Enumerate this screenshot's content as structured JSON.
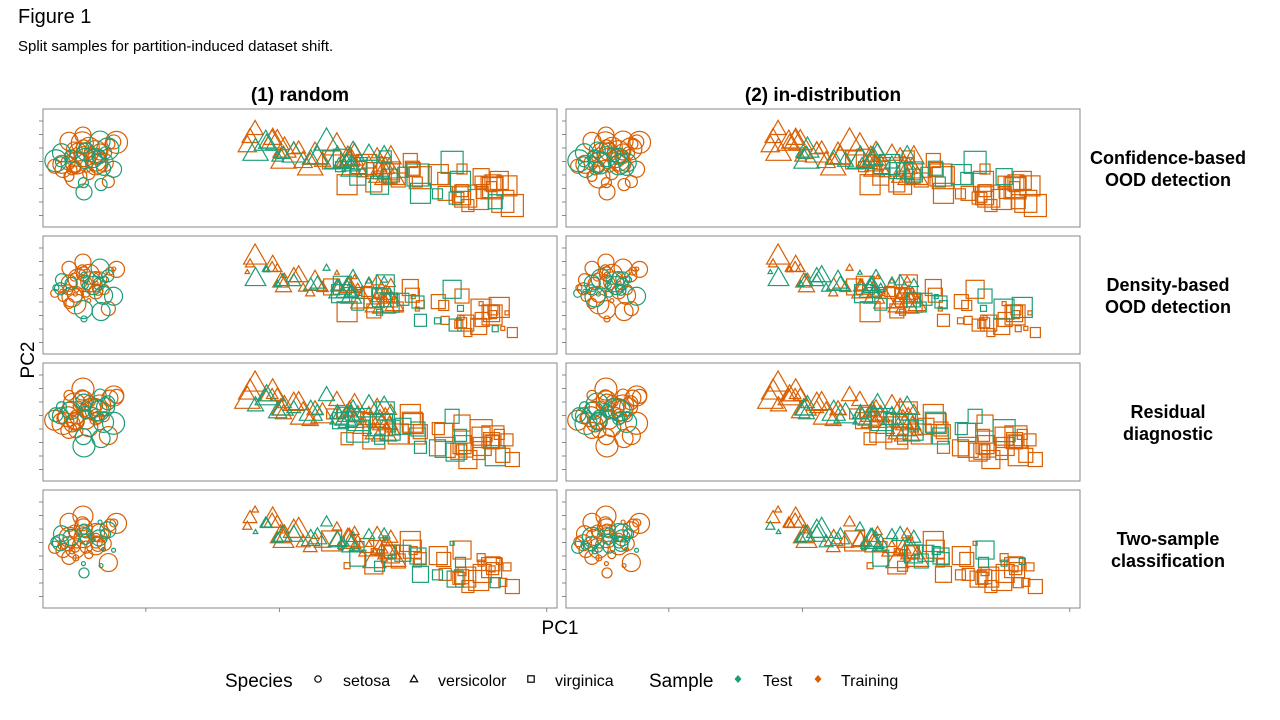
{
  "figure": {
    "label": "Figure 1",
    "caption": "Split samples for partition-induced dataset shift."
  },
  "chart_data": {
    "type": "scatter",
    "columns": [
      "(1) random",
      "(2) in-distribution"
    ],
    "rows": [
      [
        "Confidence-based",
        "OOD detection"
      ],
      [
        "Density-based",
        "OOD detection"
      ],
      [
        "Residual",
        "diagnostic"
      ],
      [
        "Two-sample",
        "classification"
      ]
    ],
    "xlabel": "PC1",
    "ylabel": "PC2",
    "xlim": [
      -3.3,
      4.2
    ],
    "ylim": [
      -1.1,
      1.5
    ],
    "axis_tick_labels": false,
    "grid": false,
    "shape_legend": {
      "title": "Species",
      "entries": [
        "setosa",
        "versicolor",
        "virginica"
      ]
    },
    "color_legend": {
      "title": "Sample",
      "entries": [
        "Test",
        "Training"
      ]
    },
    "colors": {
      "Test": "#1b9e77",
      "Training": "#d95f02"
    },
    "legend_position": "bottom",
    "note": "point size varies per panel"
  }
}
